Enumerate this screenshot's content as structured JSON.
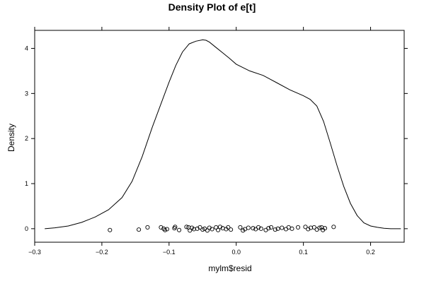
{
  "chart_data": {
    "type": "line",
    "title": "Density Plot of e[t]",
    "xlabel": "mylm$resid",
    "ylabel": "Density",
    "xlim": [
      -0.3,
      0.25
    ],
    "ylim": [
      -0.3,
      4.4
    ],
    "x_ticks": [
      -0.3,
      -0.2,
      -0.1,
      0.0,
      0.1,
      0.2
    ],
    "x_tick_labels": [
      "−0.3",
      "−0.2",
      "−0.1",
      "0.0",
      "0.1",
      "0.2"
    ],
    "y_ticks": [
      0,
      1,
      2,
      3,
      4
    ],
    "y_tick_labels": [
      "0",
      "1",
      "2",
      "3",
      "4"
    ],
    "grid": false,
    "density_curve": {
      "x": [
        -0.285,
        -0.27,
        -0.25,
        -0.23,
        -0.21,
        -0.19,
        -0.17,
        -0.155,
        -0.14,
        -0.125,
        -0.11,
        -0.1,
        -0.09,
        -0.08,
        -0.07,
        -0.06,
        -0.05,
        -0.045,
        -0.04,
        -0.03,
        -0.02,
        -0.01,
        0.0,
        0.02,
        0.04,
        0.06,
        0.08,
        0.1,
        0.11,
        0.12,
        0.13,
        0.14,
        0.15,
        0.16,
        0.17,
        0.18,
        0.19,
        0.2,
        0.21,
        0.22,
        0.23,
        0.245
      ],
      "y": [
        0.0,
        0.02,
        0.06,
        0.14,
        0.26,
        0.42,
        0.69,
        1.05,
        1.6,
        2.25,
        2.85,
        3.25,
        3.62,
        3.92,
        4.1,
        4.16,
        4.19,
        4.18,
        4.14,
        4.02,
        3.9,
        3.78,
        3.65,
        3.5,
        3.4,
        3.24,
        3.08,
        2.95,
        2.87,
        2.72,
        2.38,
        1.9,
        1.4,
        0.94,
        0.56,
        0.29,
        0.13,
        0.06,
        0.03,
        0.01,
        0.0,
        0.0
      ]
    },
    "rug_points": [
      [
        -0.188,
        -0.03
      ],
      [
        -0.145,
        -0.02
      ],
      [
        -0.132,
        0.03
      ],
      [
        -0.112,
        0.03
      ],
      [
        -0.108,
        0.0
      ],
      [
        -0.106,
        -0.03
      ],
      [
        -0.103,
        -0.01
      ],
      [
        -0.092,
        0.01
      ],
      [
        -0.091,
        0.04
      ],
      [
        -0.085,
        -0.03
      ],
      [
        -0.074,
        0.04
      ],
      [
        -0.071,
        0.03
      ],
      [
        -0.069,
        -0.04
      ],
      [
        -0.066,
        0.02
      ],
      [
        -0.063,
        -0.01
      ],
      [
        -0.058,
        0.0
      ],
      [
        -0.054,
        0.03
      ],
      [
        -0.05,
        -0.02
      ],
      [
        -0.047,
        0.0
      ],
      [
        -0.043,
        -0.04
      ],
      [
        -0.04,
        0.02
      ],
      [
        -0.036,
        -0.01
      ],
      [
        -0.03,
        0.03
      ],
      [
        -0.027,
        -0.03
      ],
      [
        -0.024,
        0.04
      ],
      [
        -0.02,
        0.01
      ],
      [
        -0.015,
        -0.01
      ],
      [
        -0.012,
        0.03
      ],
      [
        -0.008,
        -0.02
      ],
      [
        0.006,
        0.03
      ],
      [
        0.01,
        -0.04
      ],
      [
        0.013,
        -0.01
      ],
      [
        0.018,
        0.02
      ],
      [
        0.025,
        0.01
      ],
      [
        0.029,
        -0.01
      ],
      [
        0.033,
        0.03
      ],
      [
        0.037,
        0.0
      ],
      [
        0.044,
        -0.03
      ],
      [
        0.048,
        0.01
      ],
      [
        0.052,
        0.03
      ],
      [
        0.058,
        -0.02
      ],
      [
        0.062,
        0.0
      ],
      [
        0.068,
        0.02
      ],
      [
        0.074,
        -0.01
      ],
      [
        0.078,
        0.03
      ],
      [
        0.083,
        0.0
      ],
      [
        0.092,
        0.03
      ],
      [
        0.103,
        0.04
      ],
      [
        0.107,
        -0.01
      ],
      [
        0.111,
        0.02
      ],
      [
        0.116,
        0.03
      ],
      [
        0.12,
        -0.02
      ],
      [
        0.124,
        0.02
      ],
      [
        0.127,
        0.03
      ],
      [
        0.129,
        -0.03
      ],
      [
        0.132,
        0.01
      ],
      [
        0.145,
        0.04
      ]
    ]
  }
}
